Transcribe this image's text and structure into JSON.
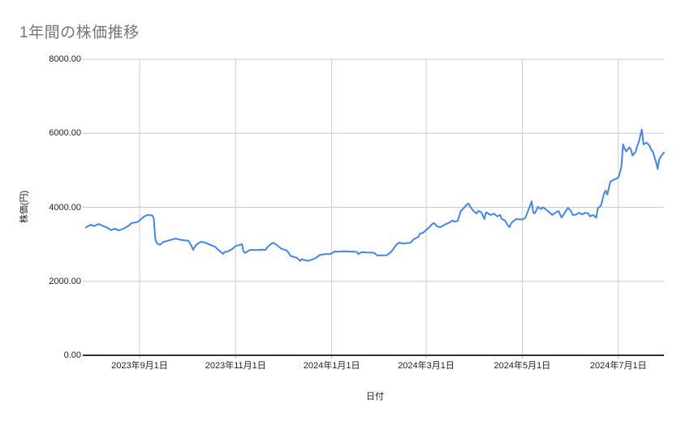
{
  "chart_data": {
    "type": "line",
    "title": "1年間の株価推移",
    "xlabel": "日付",
    "ylabel": "株価(円)",
    "grid": true,
    "legend": "none",
    "ylim": [
      0,
      8000
    ],
    "x_domain": [
      "2023-07-29",
      "2024-07-30"
    ],
    "colors": {
      "line": "#4285f4",
      "gridline": "#cccccc",
      "baseline": "#333333",
      "tick": "#b7b7b7",
      "title_text": "#757575",
      "label_text": "#222222"
    },
    "y_ticks": [
      {
        "value": 0,
        "label": "0.00"
      },
      {
        "value": 2000,
        "label": "2000.00"
      },
      {
        "value": 4000,
        "label": "4000.00"
      },
      {
        "value": 6000,
        "label": "6000.00"
      },
      {
        "value": 8000,
        "label": "8000.00"
      }
    ],
    "x_ticks": [
      {
        "date": "2023-09-01",
        "label": "2023年9月1日"
      },
      {
        "date": "2023-11-01",
        "label": "2023年11月1日"
      },
      {
        "date": "2024-01-01",
        "label": "2024年1月1日"
      },
      {
        "date": "2024-03-01",
        "label": "2024年3月1日"
      },
      {
        "date": "2024-05-01",
        "label": "2024年5月1日"
      },
      {
        "date": "2024-07-01",
        "label": "2024年7月1日"
      }
    ],
    "series": [
      {
        "name": "株価",
        "points": [
          [
            "2023-07-29",
            3457
          ],
          [
            "2023-08-01",
            3529
          ],
          [
            "2023-08-03",
            3492
          ],
          [
            "2023-08-06",
            3551
          ],
          [
            "2023-08-09",
            3492
          ],
          [
            "2023-08-11",
            3457
          ],
          [
            "2023-08-14",
            3383
          ],
          [
            "2023-08-16",
            3420
          ],
          [
            "2023-08-19",
            3375
          ],
          [
            "2023-08-22",
            3426
          ],
          [
            "2023-08-25",
            3500
          ],
          [
            "2023-08-27",
            3573
          ],
          [
            "2023-08-29",
            3588
          ],
          [
            "2023-08-31",
            3610
          ],
          [
            "2023-09-02",
            3682
          ],
          [
            "2023-09-04",
            3755
          ],
          [
            "2023-09-06",
            3792
          ],
          [
            "2023-09-09",
            3780
          ],
          [
            "2023-09-10",
            3700
          ],
          [
            "2023-09-11",
            3134
          ],
          [
            "2023-09-12",
            3025
          ],
          [
            "2023-09-14",
            2988
          ],
          [
            "2023-09-16",
            3062
          ],
          [
            "2023-09-19",
            3097
          ],
          [
            "2023-09-21",
            3120
          ],
          [
            "2023-09-24",
            3155
          ],
          [
            "2023-09-26",
            3130
          ],
          [
            "2023-09-29",
            3110
          ],
          [
            "2023-10-02",
            3097
          ],
          [
            "2023-10-04",
            2950
          ],
          [
            "2023-10-05",
            2850
          ],
          [
            "2023-10-07",
            2990
          ],
          [
            "2023-10-10",
            3068
          ],
          [
            "2023-10-13",
            3040
          ],
          [
            "2023-10-15",
            3000
          ],
          [
            "2023-10-19",
            2930
          ],
          [
            "2023-10-21",
            2850
          ],
          [
            "2023-10-24",
            2740
          ],
          [
            "2023-10-25",
            2790
          ],
          [
            "2023-10-27",
            2805
          ],
          [
            "2023-10-30",
            2878
          ],
          [
            "2023-11-01",
            2952
          ],
          [
            "2023-11-04",
            2988
          ],
          [
            "2023-11-05",
            3003
          ],
          [
            "2023-11-06",
            2805
          ],
          [
            "2023-11-07",
            2769
          ],
          [
            "2023-11-10",
            2842
          ],
          [
            "2023-11-12",
            2850
          ],
          [
            "2023-11-15",
            2845
          ],
          [
            "2023-11-17",
            2855
          ],
          [
            "2023-11-20",
            2850
          ],
          [
            "2023-11-21",
            2915
          ],
          [
            "2023-11-24",
            3025
          ],
          [
            "2023-11-25",
            3040
          ],
          [
            "2023-11-28",
            2952
          ],
          [
            "2023-11-30",
            2878
          ],
          [
            "2023-12-03",
            2842
          ],
          [
            "2023-12-04",
            2805
          ],
          [
            "2023-12-06",
            2680
          ],
          [
            "2023-12-08",
            2659
          ],
          [
            "2023-12-10",
            2630
          ],
          [
            "2023-12-12",
            2550
          ],
          [
            "2023-12-13",
            2600
          ],
          [
            "2023-12-15",
            2570
          ],
          [
            "2023-12-17",
            2550
          ],
          [
            "2023-12-19",
            2580
          ],
          [
            "2023-12-22",
            2630
          ],
          [
            "2023-12-24",
            2700
          ],
          [
            "2023-12-25",
            2718
          ],
          [
            "2023-12-28",
            2733
          ],
          [
            "2023-12-31",
            2733
          ],
          [
            "2024-01-03",
            2805
          ],
          [
            "2024-01-05",
            2800
          ],
          [
            "2024-01-09",
            2810
          ],
          [
            "2024-01-12",
            2800
          ],
          [
            "2024-01-14",
            2805
          ],
          [
            "2024-01-17",
            2790
          ],
          [
            "2024-01-18",
            2733
          ],
          [
            "2024-01-20",
            2790
          ],
          [
            "2024-01-23",
            2780
          ],
          [
            "2024-01-26",
            2775
          ],
          [
            "2024-01-28",
            2770
          ],
          [
            "2024-01-30",
            2696
          ],
          [
            "2024-02-01",
            2700
          ],
          [
            "2024-02-05",
            2705
          ],
          [
            "2024-02-08",
            2805
          ],
          [
            "2024-02-11",
            2988
          ],
          [
            "2024-02-13",
            3047
          ],
          [
            "2024-02-15",
            3020
          ],
          [
            "2024-02-17",
            3030
          ],
          [
            "2024-02-20",
            3040
          ],
          [
            "2024-02-22",
            3134
          ],
          [
            "2024-02-25",
            3200
          ],
          [
            "2024-02-26",
            3287
          ],
          [
            "2024-02-28",
            3310
          ],
          [
            "2024-03-03",
            3463
          ],
          [
            "2024-03-05",
            3550
          ],
          [
            "2024-03-06",
            3572
          ],
          [
            "2024-03-08",
            3480
          ],
          [
            "2024-03-10",
            3463
          ],
          [
            "2024-03-13",
            3536
          ],
          [
            "2024-03-15",
            3573
          ],
          [
            "2024-03-18",
            3645
          ],
          [
            "2024-03-19",
            3610
          ],
          [
            "2024-03-21",
            3631
          ],
          [
            "2024-03-23",
            3901
          ],
          [
            "2024-03-24",
            3938
          ],
          [
            "2024-03-27",
            4084
          ],
          [
            "2024-03-28",
            4099
          ],
          [
            "2024-03-29",
            4011
          ],
          [
            "2024-03-31",
            3901
          ],
          [
            "2024-04-02",
            3828
          ],
          [
            "2024-04-03",
            3901
          ],
          [
            "2024-04-05",
            3865
          ],
          [
            "2024-04-07",
            3682
          ],
          [
            "2024-04-08",
            3865
          ],
          [
            "2024-04-11",
            3792
          ],
          [
            "2024-04-13",
            3828
          ],
          [
            "2024-04-15",
            3755
          ],
          [
            "2024-04-17",
            3792
          ],
          [
            "2024-04-18",
            3682
          ],
          [
            "2024-04-20",
            3645
          ],
          [
            "2024-04-22",
            3500
          ],
          [
            "2024-04-23",
            3463
          ],
          [
            "2024-04-24",
            3573
          ],
          [
            "2024-04-26",
            3645
          ],
          [
            "2024-04-27",
            3682
          ],
          [
            "2024-05-01",
            3668
          ],
          [
            "2024-05-03",
            3719
          ],
          [
            "2024-05-06",
            4048
          ],
          [
            "2024-05-07",
            4160
          ],
          [
            "2024-05-08",
            3850
          ],
          [
            "2024-05-09",
            3836
          ],
          [
            "2024-05-11",
            4011
          ],
          [
            "2024-05-13",
            3950
          ],
          [
            "2024-05-14",
            4000
          ],
          [
            "2024-05-16",
            3945
          ],
          [
            "2024-05-18",
            3870
          ],
          [
            "2024-05-20",
            3792
          ],
          [
            "2024-05-22",
            3850
          ],
          [
            "2024-05-24",
            3901
          ],
          [
            "2024-05-26",
            3726
          ],
          [
            "2024-05-28",
            3850
          ],
          [
            "2024-05-30",
            3985
          ],
          [
            "2024-06-01",
            3900
          ],
          [
            "2024-06-02",
            3792
          ],
          [
            "2024-06-04",
            3800
          ],
          [
            "2024-06-06",
            3850
          ],
          [
            "2024-06-08",
            3810
          ],
          [
            "2024-06-10",
            3850
          ],
          [
            "2024-06-12",
            3828
          ],
          [
            "2024-06-13",
            3755
          ],
          [
            "2024-06-15",
            3792
          ],
          [
            "2024-06-17",
            3719
          ],
          [
            "2024-06-18",
            3974
          ],
          [
            "2024-06-19",
            4011
          ],
          [
            "2024-06-20",
            4048
          ],
          [
            "2024-06-22",
            4377
          ],
          [
            "2024-06-23",
            4450
          ],
          [
            "2024-06-24",
            4340
          ],
          [
            "2024-06-25",
            4523
          ],
          [
            "2024-06-26",
            4690
          ],
          [
            "2024-06-28",
            4742
          ],
          [
            "2024-06-30",
            4779
          ],
          [
            "2024-07-01",
            4800
          ],
          [
            "2024-07-02",
            4924
          ],
          [
            "2024-07-03",
            5107
          ],
          [
            "2024-07-04",
            5699
          ],
          [
            "2024-07-05",
            5589
          ],
          [
            "2024-07-06",
            5509
          ],
          [
            "2024-07-08",
            5618
          ],
          [
            "2024-07-09",
            5560
          ],
          [
            "2024-07-10",
            5399
          ],
          [
            "2024-07-12",
            5500
          ],
          [
            "2024-07-13",
            5650
          ],
          [
            "2024-07-14",
            5765
          ],
          [
            "2024-07-16",
            6100
          ],
          [
            "2024-07-17",
            5699
          ],
          [
            "2024-07-19",
            5750
          ],
          [
            "2024-07-20",
            5699
          ],
          [
            "2024-07-21",
            5655
          ],
          [
            "2024-07-22",
            5545
          ],
          [
            "2024-07-23",
            5502
          ],
          [
            "2024-07-25",
            5216
          ],
          [
            "2024-07-26",
            5034
          ],
          [
            "2024-07-27",
            5300
          ],
          [
            "2024-07-28",
            5370
          ],
          [
            "2024-07-30",
            5480
          ]
        ]
      }
    ]
  }
}
